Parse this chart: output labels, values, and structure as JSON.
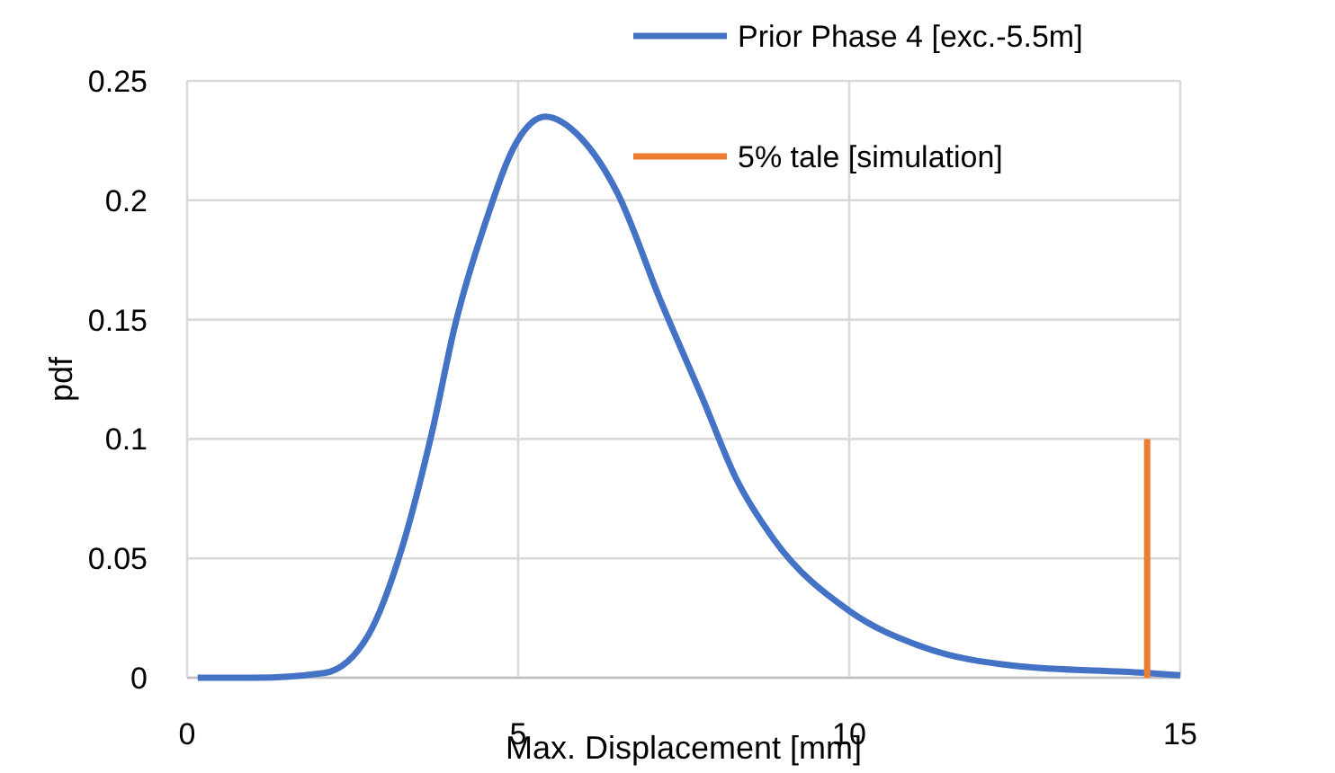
{
  "chart_data": {
    "type": "line",
    "xlabel": "Max. Displacement [mm]",
    "ylabel": "pdf",
    "xlim": [
      0,
      15
    ],
    "xticks": [
      0,
      5,
      10,
      15
    ],
    "ylim": [
      0,
      0.25
    ],
    "yticks": [
      0,
      0.05,
      0.1,
      0.15,
      0.2,
      0.25
    ],
    "grid": true,
    "legend": "top right",
    "series": [
      {
        "name": "Prior Phase 4 [exc.-5.5m]",
        "color": "#4472c4",
        "x": [
          0.16,
          1,
          2.07,
          2.74,
          3.23,
          3.7,
          4.05,
          4.51,
          4.97,
          5.41,
          5.95,
          6.5,
          7.15,
          7.77,
          8.3,
          8.86,
          10,
          11.1,
          12.5,
          14.5,
          15
        ],
        "values": [
          0,
          0,
          0.002,
          0.018,
          0.053,
          0.103,
          0.148,
          0.191,
          0.224,
          0.235,
          0.226,
          0.203,
          0.158,
          0.118,
          0.083,
          0.058,
          0.028,
          0.013,
          0.005,
          0.002,
          0.001
        ]
      },
      {
        "name": "5% tale [simulation]",
        "color": "#ed7d31",
        "x": [
          14.5,
          14.5
        ],
        "values": [
          0,
          0.1
        ]
      }
    ]
  }
}
